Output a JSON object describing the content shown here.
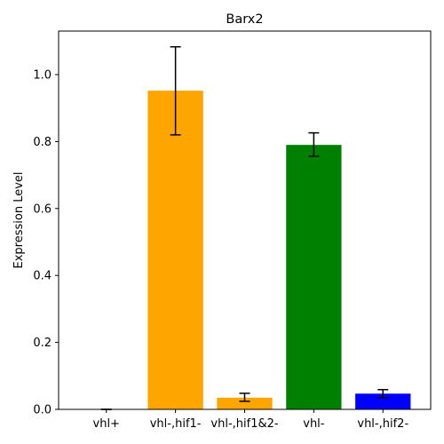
{
  "chart_data": {
    "type": "bar",
    "title": "Barx2",
    "xlabel": "",
    "ylabel": "Expression Level",
    "categories": [
      "vhl+",
      "vhl-,hif1-",
      "vhl-,hif1&2-",
      "vhl-",
      "vhl-,hif2-"
    ],
    "values": [
      0.0,
      0.952,
      0.035,
      0.79,
      0.047
    ],
    "error_low": [
      0.0,
      0.82,
      0.024,
      0.756,
      0.035
    ],
    "error_high": [
      0.0,
      1.083,
      0.048,
      0.826,
      0.059
    ],
    "colors": [
      "#ffa500",
      "#ffa500",
      "#ffa500",
      "#008000",
      "#0000ff"
    ],
    "ylim": [
      0,
      1.13
    ],
    "yticks": [
      0.0,
      0.2,
      0.4,
      0.6,
      0.8,
      1.0
    ],
    "ytick_labels": [
      "0.0",
      "0.2",
      "0.4",
      "0.6",
      "0.8",
      "1.0"
    ],
    "grid": false,
    "legend": "none"
  }
}
